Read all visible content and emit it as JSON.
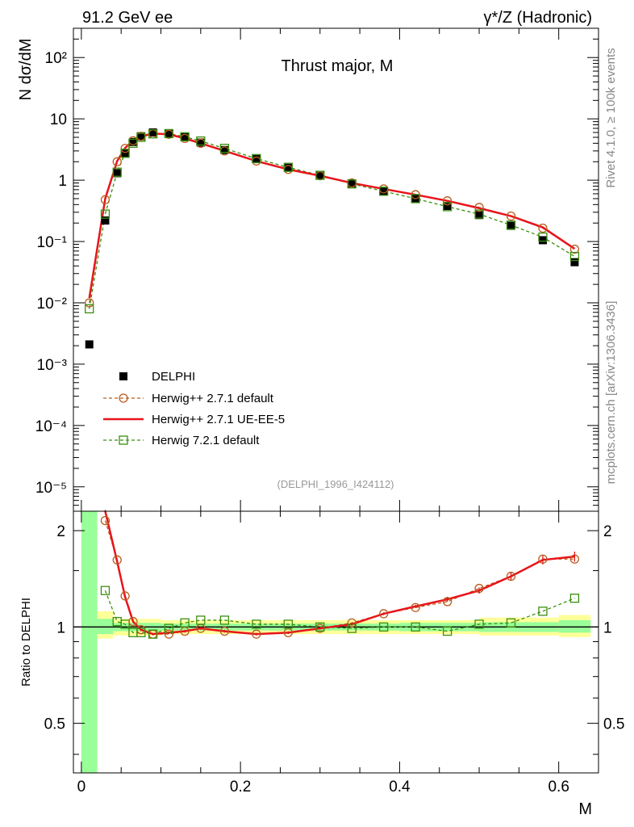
{
  "header": {
    "left": "91.2 GeV ee",
    "right": "γ*/Z (Hadronic)"
  },
  "side_labels": {
    "rivet": "Rivet 4.1.0, ≥ 100k events",
    "mcplots": "mcplots.cern.ch [arXiv:1306.3436]"
  },
  "analysis_tag": "(DELPHI_1996_I424112)",
  "colors": {
    "data": "#000000",
    "herwigpp_default": "#b85c1a",
    "herwigpp_ueee5": "#e8141c",
    "herwig7": "#3a8e0e",
    "band_inner": "#99ff99",
    "band_outer": "#ffff99"
  },
  "chart_data": [
    {
      "type": "scatter",
      "title": "Thrust major, M",
      "ylabel": "N  dσ/dM",
      "xlabel": "M",
      "yscale": "log",
      "xlim": [
        -0.01,
        0.65
      ],
      "ylim": [
        4e-06,
        300
      ],
      "y_tick_labels": [
        "10⁻⁵",
        "10⁻⁴",
        "10⁻³",
        "10⁻²",
        "10⁻¹",
        "1",
        "10",
        "10²"
      ],
      "y_ticks": [
        1e-05,
        0.0001,
        0.001,
        0.01,
        0.1,
        1,
        10,
        100
      ],
      "x": [
        0.01,
        0.03,
        0.045,
        0.055,
        0.065,
        0.075,
        0.09,
        0.11,
        0.13,
        0.15,
        0.18,
        0.22,
        0.26,
        0.3,
        0.34,
        0.38,
        0.42,
        0.46,
        0.5,
        0.54,
        0.58,
        0.62
      ],
      "series": [
        {
          "name": "DELPHI",
          "key": "data",
          "values": [
            0.0021,
            0.22,
            1.3,
            2.7,
            4.2,
            5.2,
            6.0,
            5.8,
            5.0,
            4.1,
            3.1,
            2.2,
            1.6,
            1.2,
            0.88,
            0.66,
            0.5,
            0.38,
            0.27,
            0.18,
            0.105,
            0.046
          ]
        },
        {
          "name": "Herwig++ 2.7.1 default",
          "key": "herwigpp_default",
          "values": [
            0.01,
            0.48,
            2.0,
            3.3,
            4.4,
            5.2,
            5.7,
            5.6,
            4.8,
            4.0,
            3.0,
            2.05,
            1.5,
            1.18,
            0.9,
            0.72,
            0.58,
            0.46,
            0.36,
            0.26,
            0.165,
            0.075
          ]
        },
        {
          "name": "Herwig++ 2.7.1 UE-EE-5",
          "key": "herwigpp_ueee5",
          "values": [
            0.012,
            0.5,
            2.05,
            3.35,
            4.4,
            5.2,
            5.75,
            5.6,
            4.8,
            4.0,
            3.0,
            2.05,
            1.5,
            1.18,
            0.9,
            0.72,
            0.58,
            0.46,
            0.35,
            0.26,
            0.17,
            0.076
          ]
        },
        {
          "name": "Herwig 7.2.1 default",
          "key": "herwig7",
          "values": [
            0.008,
            0.28,
            1.35,
            2.75,
            4.0,
            5.0,
            5.7,
            5.75,
            5.1,
            4.35,
            3.3,
            2.25,
            1.62,
            1.2,
            0.87,
            0.66,
            0.5,
            0.37,
            0.28,
            0.185,
            0.118,
            0.057
          ]
        }
      ]
    },
    {
      "type": "scatter",
      "ylabel": "Ratio to DELPHI",
      "xlabel": "M",
      "xlim": [
        -0.01,
        0.65
      ],
      "ylim": [
        0.35,
        2.3
      ],
      "x_tick_labels": [
        "0",
        "0.2",
        "0.4",
        "0.6"
      ],
      "x_ticks": [
        0,
        0.2,
        0.4,
        0.6
      ],
      "y_tick_labels": [
        "0.5",
        "1",
        "2"
      ],
      "y_ticks": [
        0.5,
        1,
        2
      ],
      "x": [
        0.03,
        0.045,
        0.055,
        0.065,
        0.075,
        0.09,
        0.11,
        0.13,
        0.15,
        0.18,
        0.22,
        0.26,
        0.3,
        0.34,
        0.38,
        0.42,
        0.46,
        0.5,
        0.54,
        0.58,
        0.62
      ],
      "series": [
        {
          "name": "Herwig++ 2.7.1 default",
          "key": "herwigpp_default",
          "values": [
            2.15,
            1.62,
            1.25,
            1.04,
            0.98,
            0.95,
            0.95,
            0.97,
            0.99,
            0.97,
            0.95,
            0.96,
            0.99,
            1.03,
            1.1,
            1.15,
            1.2,
            1.32,
            1.44,
            1.63,
            1.63
          ]
        },
        {
          "name": "Herwig++ 2.7.1 UE-EE-5",
          "key": "herwigpp_ueee5",
          "values": [
            2.3,
            1.6,
            1.24,
            1.04,
            0.98,
            0.95,
            0.96,
            0.97,
            0.99,
            0.97,
            0.95,
            0.96,
            0.99,
            1.02,
            1.1,
            1.16,
            1.22,
            1.3,
            1.44,
            1.62,
            1.66
          ]
        },
        {
          "name": "Herwig 7.2.1 default",
          "key": "herwig7",
          "values": [
            1.3,
            1.04,
            1.02,
            0.96,
            0.96,
            0.95,
            0.99,
            1.03,
            1.05,
            1.05,
            1.02,
            1.02,
            1.0,
            0.99,
            1.0,
            1.0,
            0.97,
            1.02,
            1.03,
            1.12,
            1.23
          ]
        }
      ]
    }
  ],
  "legend": {
    "position": "lower-left",
    "entries": [
      {
        "label": "DELPHI",
        "key": "data"
      },
      {
        "label": "Herwig++ 2.7.1 default",
        "key": "herwigpp_default"
      },
      {
        "label": "Herwig++ 2.7.1 UE-EE-5",
        "key": "herwigpp_ueee5"
      },
      {
        "label": "Herwig 7.2.1 default",
        "key": "herwig7"
      }
    ]
  }
}
